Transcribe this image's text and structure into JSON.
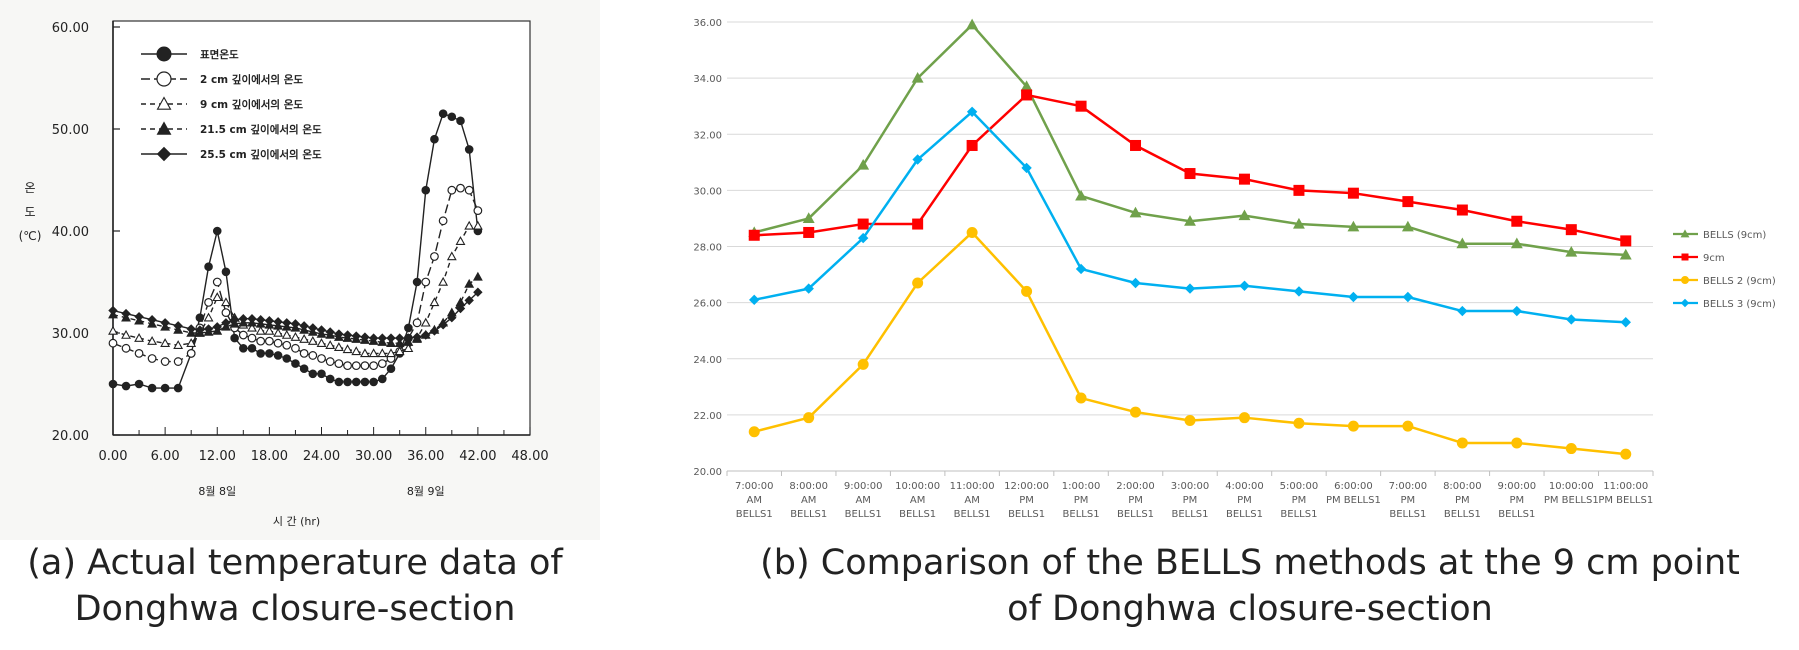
{
  "chart_data": [
    {
      "type": "line",
      "title": "",
      "xlabel": "시 간 (hr)",
      "ylabel_chars": [
        "온",
        "도",
        "(℃)"
      ],
      "x_ticks": [
        "0.00",
        "6.00",
        "12.00",
        "18.00",
        "24.00",
        "30.00",
        "36.00",
        "42.00",
        "48.00"
      ],
      "y_ticks": [
        "20.00",
        "30.00",
        "40.00",
        "50.00",
        "60.00"
      ],
      "xlim": [
        0,
        48
      ],
      "ylim": [
        20,
        60
      ],
      "day_labels": [
        {
          "x": 12,
          "text": "8월 8일"
        },
        {
          "x": 36,
          "text": "8월 9일"
        }
      ],
      "series": [
        {
          "name": "표면온도",
          "marker": "filled-circle",
          "dash": "solid",
          "x": [
            0,
            1.5,
            3,
            4.5,
            6,
            7.5,
            9,
            10,
            11,
            12,
            13,
            14,
            15,
            16,
            17,
            18,
            19,
            20,
            21,
            22,
            23,
            24,
            25,
            26,
            27,
            28,
            29,
            30,
            31,
            32,
            33,
            34,
            35,
            36,
            37,
            38,
            39,
            40,
            41,
            42
          ],
          "y": [
            25,
            24.8,
            25,
            24.6,
            24.6,
            24.6,
            28,
            31.5,
            36.5,
            40,
            36,
            29.5,
            28.5,
            28.5,
            28,
            28,
            27.8,
            27.5,
            27,
            26.5,
            26,
            26,
            25.5,
            25.2,
            25.2,
            25.2,
            25.2,
            25.2,
            25.5,
            26.5,
            28,
            30.5,
            35,
            44,
            49,
            51.5,
            51.2,
            50.8,
            48,
            40
          ]
        },
        {
          "name": "2 cm 깊이에서의 온도",
          "marker": "open-circle",
          "dash": "long-dash",
          "x": [
            0,
            1.5,
            3,
            4.5,
            6,
            7.5,
            9,
            10,
            11,
            12,
            13,
            14,
            15,
            16,
            17,
            18,
            19,
            20,
            21,
            22,
            23,
            24,
            25,
            26,
            27,
            28,
            29,
            30,
            31,
            32,
            33,
            34,
            35,
            36,
            37,
            38,
            39,
            40,
            41,
            42
          ],
          "y": [
            29,
            28.5,
            28,
            27.5,
            27.2,
            27.2,
            28,
            30.5,
            33,
            35,
            32,
            30.5,
            29.8,
            29.5,
            29.2,
            29.2,
            29,
            28.8,
            28.5,
            28,
            27.8,
            27.5,
            27.2,
            27,
            26.8,
            26.8,
            26.8,
            26.8,
            27,
            27.5,
            28.2,
            29.5,
            31,
            35,
            37.5,
            41,
            44,
            44.2,
            44,
            42
          ]
        },
        {
          "name": "9 cm 깊이에서의 온도",
          "marker": "open-triangle",
          "dash": "dash",
          "x": [
            0,
            1.5,
            3,
            4.5,
            6,
            7.5,
            9,
            10,
            11,
            12,
            13,
            14,
            15,
            16,
            17,
            18,
            19,
            20,
            21,
            22,
            23,
            24,
            25,
            26,
            27,
            28,
            29,
            30,
            31,
            32,
            33,
            34,
            35,
            36,
            37,
            38,
            39,
            40,
            41,
            42
          ],
          "y": [
            30.2,
            29.8,
            29.5,
            29.2,
            29,
            28.8,
            29,
            30,
            31.5,
            33.5,
            33,
            31.5,
            30.8,
            30.5,
            30.2,
            30.2,
            30,
            29.8,
            29.6,
            29.4,
            29.2,
            29,
            28.8,
            28.6,
            28.4,
            28.2,
            28,
            28,
            28,
            28,
            28.2,
            28.5,
            29.5,
            31,
            33,
            35,
            37.5,
            39,
            40.5,
            40.5
          ]
        },
        {
          "name": "21.5 cm 깊이에서의 온도",
          "marker": "filled-triangle",
          "dash": "dash",
          "x": [
            0,
            1.5,
            3,
            4.5,
            6,
            7.5,
            9,
            10,
            11,
            12,
            13,
            14,
            15,
            16,
            17,
            18,
            19,
            20,
            21,
            22,
            23,
            24,
            25,
            26,
            27,
            28,
            29,
            30,
            31,
            32,
            33,
            34,
            35,
            36,
            37,
            38,
            39,
            40,
            41,
            42
          ],
          "y": [
            31.8,
            31.5,
            31.2,
            30.9,
            30.6,
            30.3,
            30,
            30,
            30.1,
            30.2,
            30.6,
            30.9,
            31,
            31,
            30.9,
            30.8,
            30.7,
            30.6,
            30.5,
            30.3,
            30.1,
            29.9,
            29.8,
            29.6,
            29.5,
            29.4,
            29.3,
            29.2,
            29.1,
            29,
            29,
            29.1,
            29.4,
            29.8,
            30.3,
            31,
            32,
            33,
            34.8,
            35.5
          ]
        },
        {
          "name": "25.5 cm 깊이에서의 온도",
          "marker": "filled-diamond",
          "dash": "solid",
          "x": [
            0,
            1.5,
            3,
            4.5,
            6,
            7.5,
            9,
            10,
            11,
            12,
            13,
            14,
            15,
            16,
            17,
            18,
            19,
            20,
            21,
            22,
            23,
            24,
            25,
            26,
            27,
            28,
            29,
            30,
            31,
            32,
            33,
            34,
            35,
            36,
            37,
            38,
            39,
            40,
            41,
            42
          ],
          "y": [
            32.2,
            31.9,
            31.6,
            31.3,
            31,
            30.7,
            30.4,
            30.3,
            30.4,
            30.6,
            31,
            31.3,
            31.4,
            31.4,
            31.3,
            31.2,
            31.1,
            31,
            30.9,
            30.7,
            30.5,
            30.3,
            30.1,
            29.9,
            29.8,
            29.7,
            29.6,
            29.5,
            29.5,
            29.5,
            29.5,
            29.5,
            29.6,
            29.8,
            30.2,
            30.8,
            31.5,
            32.4,
            33.2,
            34
          ]
        }
      ]
    },
    {
      "type": "line",
      "title": "",
      "xlabel": "",
      "ylabel": "",
      "ylim": [
        20,
        36
      ],
      "y_ticks": [
        "20.00",
        "22.00",
        "24.00",
        "26.00",
        "28.00",
        "30.00",
        "32.00",
        "34.00",
        "36.00"
      ],
      "categories": [
        [
          "7:00:00",
          "AM",
          "BELLS1"
        ],
        [
          "8:00:00",
          "AM",
          "BELLS1"
        ],
        [
          "9:00:00",
          "AM",
          "BELLS1"
        ],
        [
          "10:00:00",
          "AM",
          "BELLS1"
        ],
        [
          "11:00:00",
          "AM",
          "BELLS1"
        ],
        [
          "12:00:00",
          "PM",
          "BELLS1"
        ],
        [
          "1:00:00",
          "PM",
          "BELLS1"
        ],
        [
          "2:00:00",
          "PM",
          "BELLS1"
        ],
        [
          "3:00:00",
          "PM",
          "BELLS1"
        ],
        [
          "4:00:00",
          "PM",
          "BELLS1"
        ],
        [
          "5:00:00",
          "PM",
          "BELLS1"
        ],
        [
          "6:00:00",
          "PM BELLS1"
        ],
        [
          "7:00:00",
          "PM",
          "BELLS1"
        ],
        [
          "8:00:00",
          "PM",
          "BELLS1"
        ],
        [
          "9:00:00",
          "PM",
          "BELLS1"
        ],
        [
          "10:00:00",
          "PM BELLS1"
        ],
        [
          "11:00:00",
          "PM BELLS1"
        ]
      ],
      "legend_position": "right",
      "series": [
        {
          "name": "BELLS (9cm)",
          "color": "#70a14b",
          "marker": "triangle",
          "values": [
            28.5,
            29.0,
            30.9,
            34.0,
            35.9,
            33.7,
            29.8,
            29.2,
            28.9,
            29.1,
            28.8,
            28.7,
            28.7,
            28.1,
            28.1,
            27.8,
            27.7
          ]
        },
        {
          "name": "9cm",
          "color": "#ff0000",
          "marker": "square",
          "values": [
            28.4,
            28.5,
            28.8,
            28.8,
            31.6,
            33.4,
            33.0,
            31.6,
            30.6,
            30.4,
            30.0,
            29.9,
            29.6,
            29.3,
            28.9,
            28.6,
            28.2
          ]
        },
        {
          "name": "BELLS 2 (9cm)",
          "color": "#ffc000",
          "marker": "circle",
          "values": [
            21.4,
            21.9,
            23.8,
            26.7,
            28.5,
            26.4,
            22.6,
            22.1,
            21.8,
            21.9,
            21.7,
            21.6,
            21.6,
            21.0,
            21.0,
            20.8,
            20.6
          ]
        },
        {
          "name": "BELLS 3 (9cm)",
          "color": "#00b0f0",
          "marker": "diamond",
          "values": [
            26.1,
            26.5,
            28.3,
            31.1,
            32.8,
            30.8,
            27.2,
            26.7,
            26.5,
            26.6,
            26.4,
            26.2,
            26.2,
            25.7,
            25.7,
            25.4,
            25.3
          ]
        }
      ]
    }
  ],
  "captions": {
    "a": [
      "(a) Actual temperature data of",
      "Donghwa closure-section"
    ],
    "b": [
      "(b) Comparison of the BELLS methods at the 9 cm point",
      "of Donghwa closure-section"
    ]
  }
}
